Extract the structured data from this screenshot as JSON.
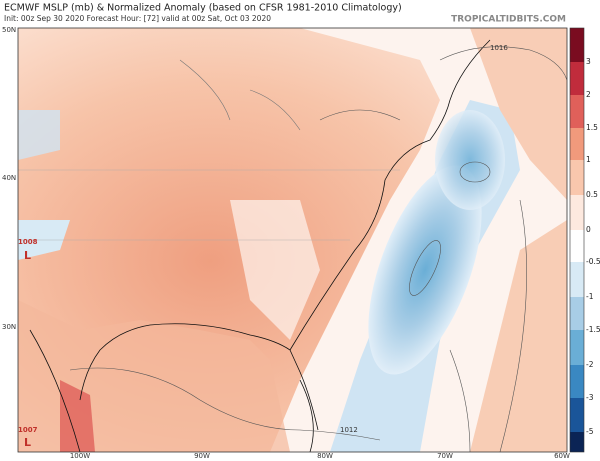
{
  "header": {
    "title": "ECMWF MSLP (mb) & Normalized Anomaly (based on CFSR 1981-2010 Climatology)",
    "subtitle": "Init: 00z Sep 30 2020   Forecast Hour: [72]   valid at 00z Sat, Oct 03 2020",
    "watermark": "TROPICALTIDBITS.COM"
  },
  "latitude_labels": [
    "50N",
    "40N",
    "30N"
  ],
  "longitude_labels": [
    "100W",
    "90W",
    "80W",
    "70W",
    "60W"
  ],
  "colorbar_labels": [
    3,
    2,
    1.5,
    1,
    0.5,
    0,
    -0.5,
    -1,
    -1.5,
    -2,
    -3,
    -5
  ],
  "isobar_labels": [
    "1016",
    "1012",
    "1008",
    "L",
    "1007",
    "L"
  ]
}
